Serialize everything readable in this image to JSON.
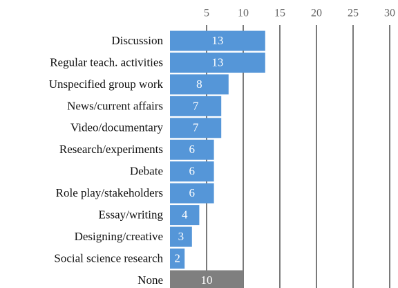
{
  "chart_data": {
    "type": "barh",
    "categories": [
      "Discussion",
      "Regular teach. activities",
      "Unspecified group work",
      "News/current affairs",
      "Video/documentary",
      "Research/experiments",
      "Debate",
      "Role play/stakeholders",
      "Essay/writing",
      "Designing/creative",
      "Social science research",
      "None"
    ],
    "values": [
      13,
      13,
      8,
      7,
      7,
      6,
      6,
      6,
      4,
      3,
      2,
      10
    ],
    "colors": [
      "#5596d8",
      "#5596d8",
      "#5596d8",
      "#5596d8",
      "#5596d8",
      "#5596d8",
      "#5596d8",
      "#5596d8",
      "#5596d8",
      "#5596d8",
      "#5596d8",
      "#7f7f7f"
    ],
    "xlim": [
      0,
      30
    ],
    "xticks": [
      5,
      10,
      15,
      20,
      25,
      30
    ],
    "grid": true
  }
}
